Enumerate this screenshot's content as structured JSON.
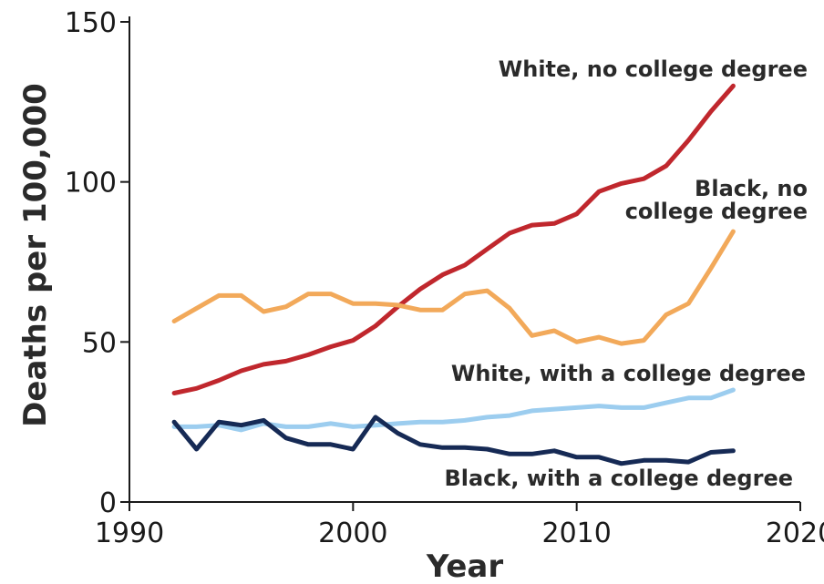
{
  "chart_data": {
    "type": "line",
    "xlabel": "Year",
    "ylabel": "Deaths per 100,000",
    "xlim": [
      1990,
      2020
    ],
    "ylim": [
      0,
      150
    ],
    "x_ticks": [
      "1990",
      "2000",
      "2010",
      "2020"
    ],
    "y_ticks": [
      "0",
      "50",
      "100",
      "150"
    ],
    "grid": false,
    "x": [
      1992,
      1993,
      1994,
      1995,
      1996,
      1997,
      1998,
      1999,
      2000,
      2001,
      2002,
      2003,
      2004,
      2005,
      2006,
      2007,
      2008,
      2009,
      2010,
      2011,
      2012,
      2013,
      2014,
      2015,
      2016,
      2017
    ],
    "series": [
      {
        "name": "White, no college degree",
        "color": "#c0272d",
        "label_lines": [
          "White, no college degree"
        ],
        "values": [
          34,
          35.5,
          38,
          41,
          43,
          44,
          46,
          48.5,
          50.5,
          55,
          61,
          66.5,
          71,
          74,
          79,
          84,
          86.5,
          87,
          90,
          97,
          99.5,
          101,
          105,
          113,
          122,
          130
        ]
      },
      {
        "name": "Black, no college degree",
        "color": "#f2a95a",
        "label_lines": [
          "Black, no",
          "college degree"
        ],
        "values": [
          56.5,
          60.5,
          64.5,
          64.5,
          59.5,
          61,
          65,
          65,
          62,
          62,
          61.5,
          60,
          60,
          65,
          66,
          60.5,
          52,
          53.5,
          50,
          51.5,
          49.5,
          50.5,
          58.5,
          62,
          73,
          84.5
        ]
      },
      {
        "name": "White, with a college degree",
        "color": "#9ccdef",
        "label_lines": [
          "White, with a college degree"
        ],
        "values": [
          23.5,
          23.5,
          24,
          22.5,
          24.5,
          23.5,
          23.5,
          24.5,
          23.5,
          24,
          24.5,
          25,
          25,
          25.5,
          26.5,
          27,
          28.5,
          29,
          29.5,
          30,
          29.5,
          29.5,
          31,
          32.5,
          32.5,
          35
        ]
      },
      {
        "name": "Black, with a college degree",
        "color": "#162a55",
        "label_lines": [
          "Black, with a college degree"
        ],
        "values": [
          25,
          16.5,
          25,
          24,
          25.5,
          20,
          18,
          18,
          16.5,
          26.5,
          21.5,
          18,
          17,
          17,
          16.5,
          15,
          15,
          16,
          14,
          14,
          12,
          13,
          13,
          12.5,
          15.5,
          16
        ]
      }
    ]
  }
}
